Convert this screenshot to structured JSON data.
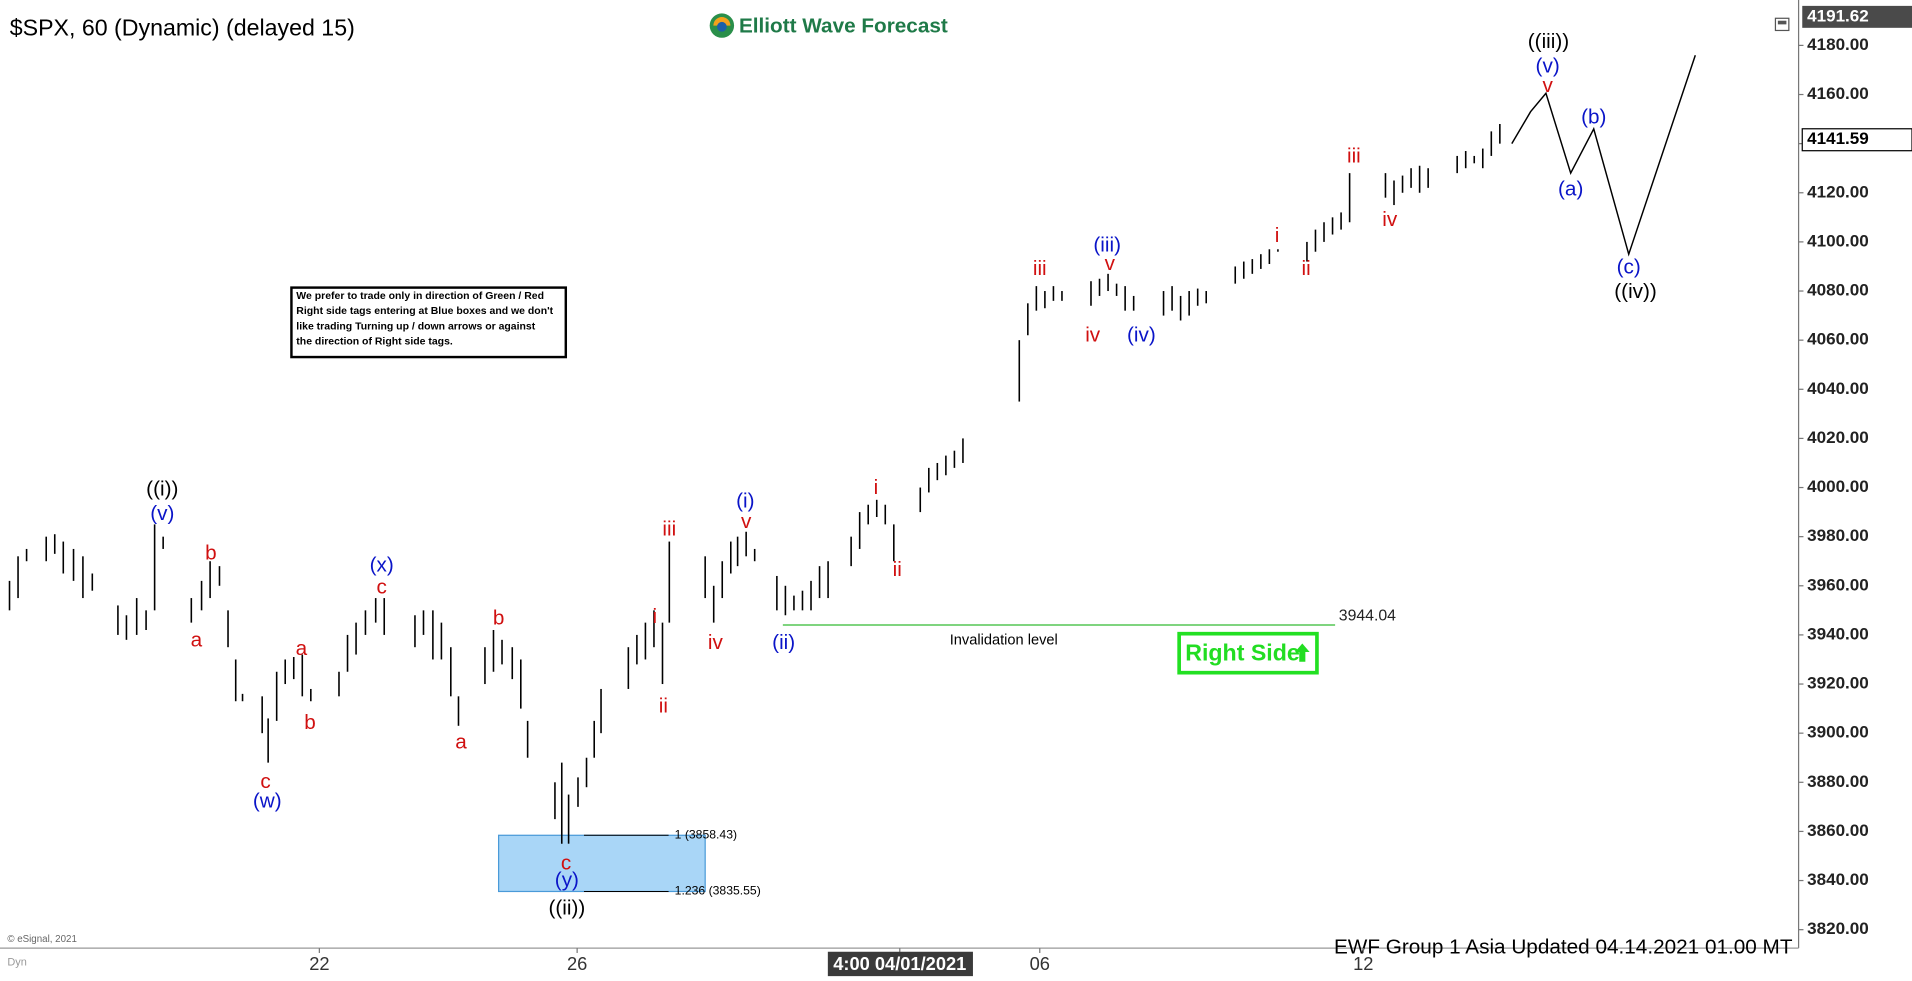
{
  "chart_data": {
    "type": "ohlc",
    "title": "$SPX, 60 (Dynamic) (delayed 15)",
    "logo": "Elliott Wave Forecast",
    "footer": "EWF Group 1 Asia Updated 04.14.2021 01.00 MT",
    "copyright": "© eSignal, 2021",
    "corner_tag": "Dyn",
    "bar_color": "#000000",
    "xlim": [
      0,
      210
    ],
    "ylim": [
      3812.5,
      4196
    ],
    "xticks": [
      {
        "value": 36.7,
        "label": "22"
      },
      {
        "value": 66.9,
        "label": "26"
      },
      {
        "value": 104.7,
        "label": "4:00 04/01/2021"
      },
      {
        "value": 121.1,
        "label": "06"
      },
      {
        "value": 159,
        "label": "12"
      }
    ],
    "highlighted_xtick": 2,
    "yticks": [
      {
        "value": 3820,
        "label": "3820.00"
      },
      {
        "value": 3840,
        "label": "3840.00"
      },
      {
        "value": 3860,
        "label": "3860.00"
      },
      {
        "value": 3880,
        "label": "3880.00"
      },
      {
        "value": 3900,
        "label": "3900.00"
      },
      {
        "value": 3920,
        "label": "3920.00"
      },
      {
        "value": 3940,
        "label": "3940.00"
      },
      {
        "value": 3960,
        "label": "3960.00"
      },
      {
        "value": 3980,
        "label": "3980.00"
      },
      {
        "value": 4000,
        "label": "4000.00"
      },
      {
        "value": 4020,
        "label": "4020.00"
      },
      {
        "value": 4040,
        "label": "4040.00"
      },
      {
        "value": 4060,
        "label": "4060.00"
      },
      {
        "value": 4080,
        "label": "4080.00"
      },
      {
        "value": 4100,
        "label": "4100.00"
      },
      {
        "value": 4120,
        "label": "4120.00"
      },
      {
        "value": 4140,
        "label": "4140.00"
      },
      {
        "value": 4160,
        "label": "4160.00"
      },
      {
        "value": 4180,
        "label": "4180.00"
      }
    ],
    "x": [
      0.4,
      1.4,
      2.4,
      4.7,
      5.7,
      6.7,
      7.9,
      9,
      10.1,
      13.1,
      14.1,
      15.3,
      16.4,
      17.4,
      18.4,
      21.7,
      22.9,
      23.9,
      25,
      26,
      26.9,
      27.7,
      30,
      30.7,
      31.7,
      32.7,
      33.7,
      34.7,
      35.7,
      39,
      40,
      41,
      42.1,
      43.3,
      44.3,
      47.9,
      48.9,
      50,
      51,
      52.1,
      53,
      56.1,
      57.1,
      58.1,
      59.3,
      60.3,
      61.1,
      64.3,
      65.1,
      65.9,
      67,
      68,
      68.9,
      69.7,
      72.9,
      73.9,
      74.9,
      75.9,
      76.9,
      77.7,
      81.9,
      82.9,
      83.9,
      84.9,
      85.7,
      86.7,
      87.7,
      90.3,
      91.3,
      92.3,
      93.3,
      94.3,
      95.3,
      96.3,
      99,
      100,
      101,
      102,
      103,
      104,
      107.1,
      108.1,
      109.1,
      110.1,
      111.1,
      112.1,
      118.7,
      119.7,
      120.7,
      121.7,
      122.7,
      123.7,
      127.1,
      128.1,
      129.1,
      130.1,
      131.1,
      132.1,
      135.6,
      136.6,
      137.6,
      138.6,
      139.6,
      140.6,
      144,
      145,
      146,
      147,
      148,
      149,
      152.4,
      153.4,
      154.4,
      155.4,
      156.4,
      157.4,
      161.6,
      162.6,
      163.6,
      164.6,
      165.6,
      166.6,
      170,
      171,
      172,
      173,
      174,
      175
    ],
    "high": [
      3962,
      3972,
      3975,
      3980,
      3981,
      3978,
      3975,
      3972,
      3965,
      3952,
      3948,
      3955,
      3950,
      3985,
      3980,
      3955,
      3962,
      3970,
      3968,
      3950,
      3930,
      3916,
      3915,
      3906,
      3925,
      3930,
      3931,
      3932,
      3918,
      3925,
      3940,
      3945,
      3950,
      3955,
      3955,
      3948,
      3950,
      3950,
      3945,
      3935,
      3915,
      3935,
      3942,
      3938,
      3935,
      3930,
      3905,
      3880,
      3888,
      3875,
      3882,
      3890,
      3905,
      3918,
      3935,
      3940,
      3945,
      3950,
      3945,
      3978,
      3972,
      3960,
      3970,
      3978,
      3980,
      3982,
      3975,
      3964,
      3960,
      3956,
      3958,
      3962,
      3968,
      3970,
      3980,
      3990,
      3993,
      3995,
      3993,
      3985,
      4000,
      4008,
      4010,
      4013,
      4015,
      4020,
      4060,
      4075,
      4082,
      4080,
      4082,
      4080,
      4084,
      4085,
      4087,
      4083,
      4082,
      4078,
      4080,
      4082,
      4078,
      4080,
      4081,
      4080,
      4090,
      4092,
      4093,
      4095,
      4097,
      4097,
      4100,
      4105,
      4108,
      4110,
      4112,
      4128,
      4128,
      4125,
      4127,
      4130,
      4131,
      4130,
      4135,
      4137,
      4135,
      4138,
      4145,
      4148
    ],
    "low": [
      3950,
      3955,
      3970,
      3970,
      3973,
      3965,
      3962,
      3955,
      3958,
      3940,
      3938,
      3940,
      3942,
      3950,
      3975,
      3945,
      3950,
      3955,
      3960,
      3935,
      3913,
      3913,
      3900,
      3888,
      3905,
      3920,
      3922,
      3915,
      3913,
      3915,
      3925,
      3932,
      3940,
      3945,
      3940,
      3935,
      3940,
      3930,
      3930,
      3915,
      3903,
      3920,
      3925,
      3928,
      3922,
      3910,
      3890,
      3865,
      3855,
      3855,
      3870,
      3878,
      3890,
      3900,
      3918,
      3928,
      3930,
      3935,
      3920,
      3945,
      3955,
      3945,
      3955,
      3965,
      3968,
      3972,
      3970,
      3950,
      3948,
      3950,
      3950,
      3950,
      3955,
      3955,
      3968,
      3975,
      3985,
      3988,
      3985,
      3970,
      3990,
      3998,
      4003,
      4005,
      4008,
      4010,
      4035,
      4062,
      4072,
      4073,
      4076,
      4076,
      4074,
      4078,
      4080,
      4078,
      4072,
      4072,
      4070,
      4072,
      4068,
      4070,
      4074,
      4075,
      4083,
      4085,
      4087,
      4089,
      4091,
      4096,
      4092,
      4096,
      4100,
      4103,
      4105,
      4108,
      4118,
      4115,
      4120,
      4122,
      4120,
      4122,
      4128,
      4130,
      4132,
      4130,
      4135,
      4140
    ],
    "price_markers": [
      4191.62,
      4141.59
    ],
    "projection": {
      "x": [
        176.4,
        178.6,
        180.4,
        183.3,
        186,
        190.1,
        197.9
      ],
      "y": [
        4140,
        4153,
        4160.5,
        4128,
        4146,
        4095,
        4176
      ]
    },
    "invalidation": {
      "value": 3944.04,
      "x_start": 91,
      "x_end": 155.7,
      "text": "Invalidation level"
    },
    "fib_zone": {
      "x_range": [
        57.7,
        81.9
      ],
      "levels": [
        {
          "value": 3858.43,
          "label": "1 (3858.43)"
        },
        {
          "value": 3835.55,
          "label": "1.236 (3835.55)"
        }
      ]
    },
    "note": [
      "We prefer to trade only in direction of Green / Red",
      "Right side tags entering at Blue boxes and we don't",
      "like trading Turning up / down arrows or against",
      "the direction of Right side tags."
    ],
    "right_side": "Right Side",
    "wave_labels": [
      {
        "text": "((i))",
        "x": 18.3,
        "price": 3999,
        "color": "#000000"
      },
      {
        "text": "(v)",
        "x": 18.3,
        "price": 3989,
        "color": "#0a14c8"
      },
      {
        "text": "b",
        "x": 24,
        "price": 3973,
        "color": "#d01010"
      },
      {
        "text": "a",
        "x": 22.3,
        "price": 3937.5,
        "color": "#d01010"
      },
      {
        "text": "a",
        "x": 34.6,
        "price": 3934,
        "color": "#d01010"
      },
      {
        "text": "b",
        "x": 35.6,
        "price": 3904,
        "color": "#d01010"
      },
      {
        "text": "c",
        "x": 30.4,
        "price": 3880,
        "color": "#d01010"
      },
      {
        "text": "(w)",
        "x": 30.6,
        "price": 3872,
        "color": "#0a14c8"
      },
      {
        "text": "(x)",
        "x": 44,
        "price": 3968,
        "color": "#0a14c8"
      },
      {
        "text": "c",
        "x": 44,
        "price": 3959,
        "color": "#d01010"
      },
      {
        "text": "b",
        "x": 57.7,
        "price": 3946.5,
        "color": "#d01010"
      },
      {
        "text": "a",
        "x": 53.3,
        "price": 3896,
        "color": "#d01010"
      },
      {
        "text": "c",
        "x": 65.6,
        "price": 3846.7,
        "color": "#d01010"
      },
      {
        "text": "(y)",
        "x": 65.7,
        "price": 3839.8,
        "color": "#0a14c8"
      },
      {
        "text": "((ii))",
        "x": 65.7,
        "price": 3828.4,
        "color": "#000000"
      },
      {
        "text": "i",
        "x": 76,
        "price": 3947,
        "color": "#d01010"
      },
      {
        "text": "ii",
        "x": 77,
        "price": 3910.7,
        "color": "#d01010"
      },
      {
        "text": "iii",
        "x": 77.7,
        "price": 3982.7,
        "color": "#d01010"
      },
      {
        "text": "iv",
        "x": 83.1,
        "price": 3936.5,
        "color": "#d01010"
      },
      {
        "text": "v",
        "x": 86.7,
        "price": 3985.7,
        "color": "#d01010"
      },
      {
        "text": "(i)",
        "x": 86.6,
        "price": 3994,
        "color": "#0a14c8"
      },
      {
        "text": "(ii)",
        "x": 91.1,
        "price": 3936.5,
        "color": "#0a14c8"
      },
      {
        "text": "i",
        "x": 101.9,
        "price": 3999.5,
        "color": "#d01010"
      },
      {
        "text": "ii",
        "x": 104.4,
        "price": 3966.3,
        "color": "#d01010"
      },
      {
        "text": "iii",
        "x": 121.1,
        "price": 4088.8,
        "color": "#d01010"
      },
      {
        "text": "iv",
        "x": 127.3,
        "price": 4061.6,
        "color": "#d01010"
      },
      {
        "text": "(iii)",
        "x": 129,
        "price": 4098.3,
        "color": "#0a14c8"
      },
      {
        "text": "v",
        "x": 129.3,
        "price": 4090.8,
        "color": "#d01010"
      },
      {
        "text": "(iv)",
        "x": 133,
        "price": 4061.6,
        "color": "#0a14c8"
      },
      {
        "text": "i",
        "x": 148.9,
        "price": 4102.2,
        "color": "#d01010"
      },
      {
        "text": "ii",
        "x": 152.3,
        "price": 4088.8,
        "color": "#d01010"
      },
      {
        "text": "iii",
        "x": 157.9,
        "price": 4134.5,
        "color": "#d01010"
      },
      {
        "text": "iv",
        "x": 162.1,
        "price": 4108.7,
        "color": "#d01010"
      },
      {
        "text": "((iii))",
        "x": 180.7,
        "price": 4181.1,
        "color": "#000000"
      },
      {
        "text": "(v)",
        "x": 180.6,
        "price": 4171.2,
        "color": "#0a14c8"
      },
      {
        "text": "v",
        "x": 180.6,
        "price": 4163.3,
        "color": "#d01010"
      },
      {
        "text": "(a)",
        "x": 183.3,
        "price": 4121.1,
        "color": "#0a14c8"
      },
      {
        "text": "(b)",
        "x": 186,
        "price": 4150.4,
        "color": "#0a14c8"
      },
      {
        "text": "(c)",
        "x": 190.1,
        "price": 4089.3,
        "color": "#0a14c8"
      },
      {
        "text": "((iv))",
        "x": 190.9,
        "price": 4079.4,
        "color": "#000000"
      }
    ]
  }
}
